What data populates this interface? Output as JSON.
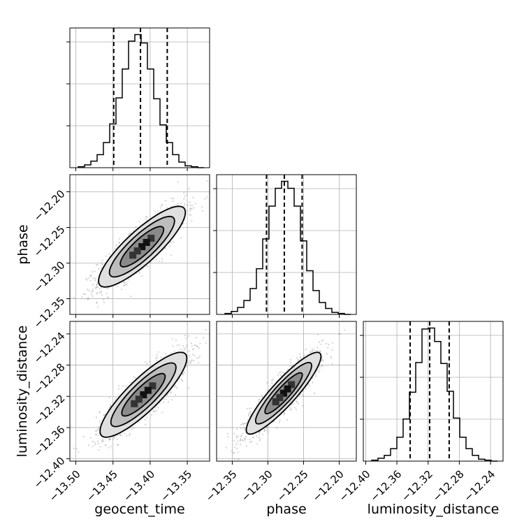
{
  "chart_data": {
    "type": "scatter",
    "plot_style": "corner",
    "parameters": [
      "geocent_time",
      "phase",
      "luminosity_distance"
    ],
    "axis_labels": {
      "geocent_time": "geocent_time",
      "phase": "phase",
      "luminosity_distance": "luminosity_distance"
    },
    "ticks": {
      "geocent_time": [
        "−13.50",
        "−13.45",
        "−13.40",
        "−13.35"
      ],
      "geocent_time_values": [
        -13.5,
        -13.45,
        -13.4,
        -13.35
      ],
      "phase": [
        "−12.35",
        "−12.30",
        "−12.25",
        "−12.20"
      ],
      "phase_values": [
        -12.35,
        -12.3,
        -12.25,
        -12.2
      ],
      "luminosity_distance": [
        "−12.40",
        "−12.36",
        "−12.32",
        "−12.28",
        "−12.24"
      ],
      "luminosity_distance_values": [
        -12.4,
        -12.36,
        -12.32,
        -12.28,
        -12.24
      ]
    },
    "ranges": {
      "geocent_time": [
        -13.508,
        -13.32
      ],
      "phase": [
        -12.372,
        -12.176
      ],
      "luminosity_distance": [
        -12.403,
        -12.224
      ]
    },
    "grid": true,
    "histograms": {
      "geocent_time": {
        "bins": 20,
        "counts": [
          1,
          3,
          7,
          14,
          27,
          47,
          75,
          106,
          136,
          143,
          134,
          106,
          74,
          46,
          27,
          14,
          6,
          2,
          1,
          0
        ],
        "quantiles": [
          -13.449,
          -13.413,
          -13.377
        ]
      },
      "phase": {
        "bins": 20,
        "counts": [
          1,
          3,
          7,
          14,
          26,
          46,
          76,
          109,
          127,
          134,
          127,
          109,
          74,
          44,
          24,
          12,
          6,
          2,
          1,
          0
        ],
        "quantiles": [
          -12.302,
          -12.277,
          -12.252
        ]
      },
      "luminosity_distance": {
        "bins": 20,
        "counts": [
          1,
          3,
          6,
          13,
          25,
          44,
          72,
          103,
          138,
          139,
          125,
          102,
          73,
          45,
          25,
          13,
          6,
          2,
          1,
          0
        ],
        "quantiles": [
          -12.343,
          -12.318,
          -12.293
        ]
      }
    },
    "pairs": [
      {
        "x": "geocent_time",
        "y": "phase",
        "mean": [
          -13.411,
          -12.277
        ],
        "sd": [
          0.0292,
          0.0283
        ],
        "corr": 0.85
      },
      {
        "x": "geocent_time",
        "y": "luminosity_distance",
        "mean": [
          -13.409,
          -12.318
        ],
        "sd": [
          0.0292,
          0.0272
        ],
        "corr": 0.86
      },
      {
        "x": "phase",
        "y": "luminosity_distance",
        "mean": [
          -12.278,
          -12.316
        ],
        "sd": [
          0.0262,
          0.0262
        ],
        "corr": 0.9
      }
    ],
    "colors": {
      "line": "#000000",
      "points": "#808080",
      "grid": "#b0b0b0"
    }
  }
}
